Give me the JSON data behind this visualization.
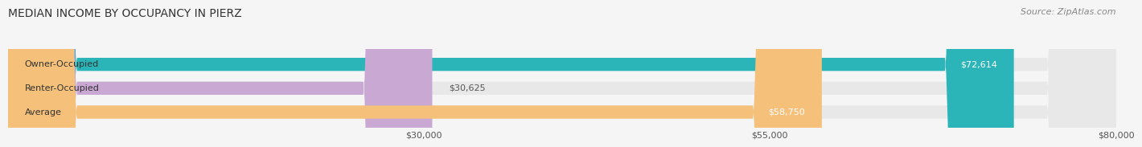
{
  "title": "MEDIAN INCOME BY OCCUPANCY IN PIERZ",
  "source": "Source: ZipAtlas.com",
  "categories": [
    "Owner-Occupied",
    "Renter-Occupied",
    "Average"
  ],
  "values": [
    72614,
    30625,
    58750
  ],
  "bar_colors": [
    "#2bb5b8",
    "#c9a8d4",
    "#f5c07a"
  ],
  "bar_track_color": "#e8e8e8",
  "value_labels": [
    "$72,614",
    "$30,625",
    "$58,750"
  ],
  "xlim": [
    0,
    80000
  ],
  "xticks": [
    30000,
    55000,
    80000
  ],
  "xtick_labels": [
    "$30,000",
    "$55,000",
    "$80,000"
  ],
  "title_fontsize": 10,
  "source_fontsize": 8,
  "label_fontsize": 8,
  "value_fontsize": 8,
  "bar_height": 0.55,
  "background_color": "#f5f5f5",
  "bar_label_color_inside": "#ffffff",
  "bar_label_color_outside": "#555555"
}
